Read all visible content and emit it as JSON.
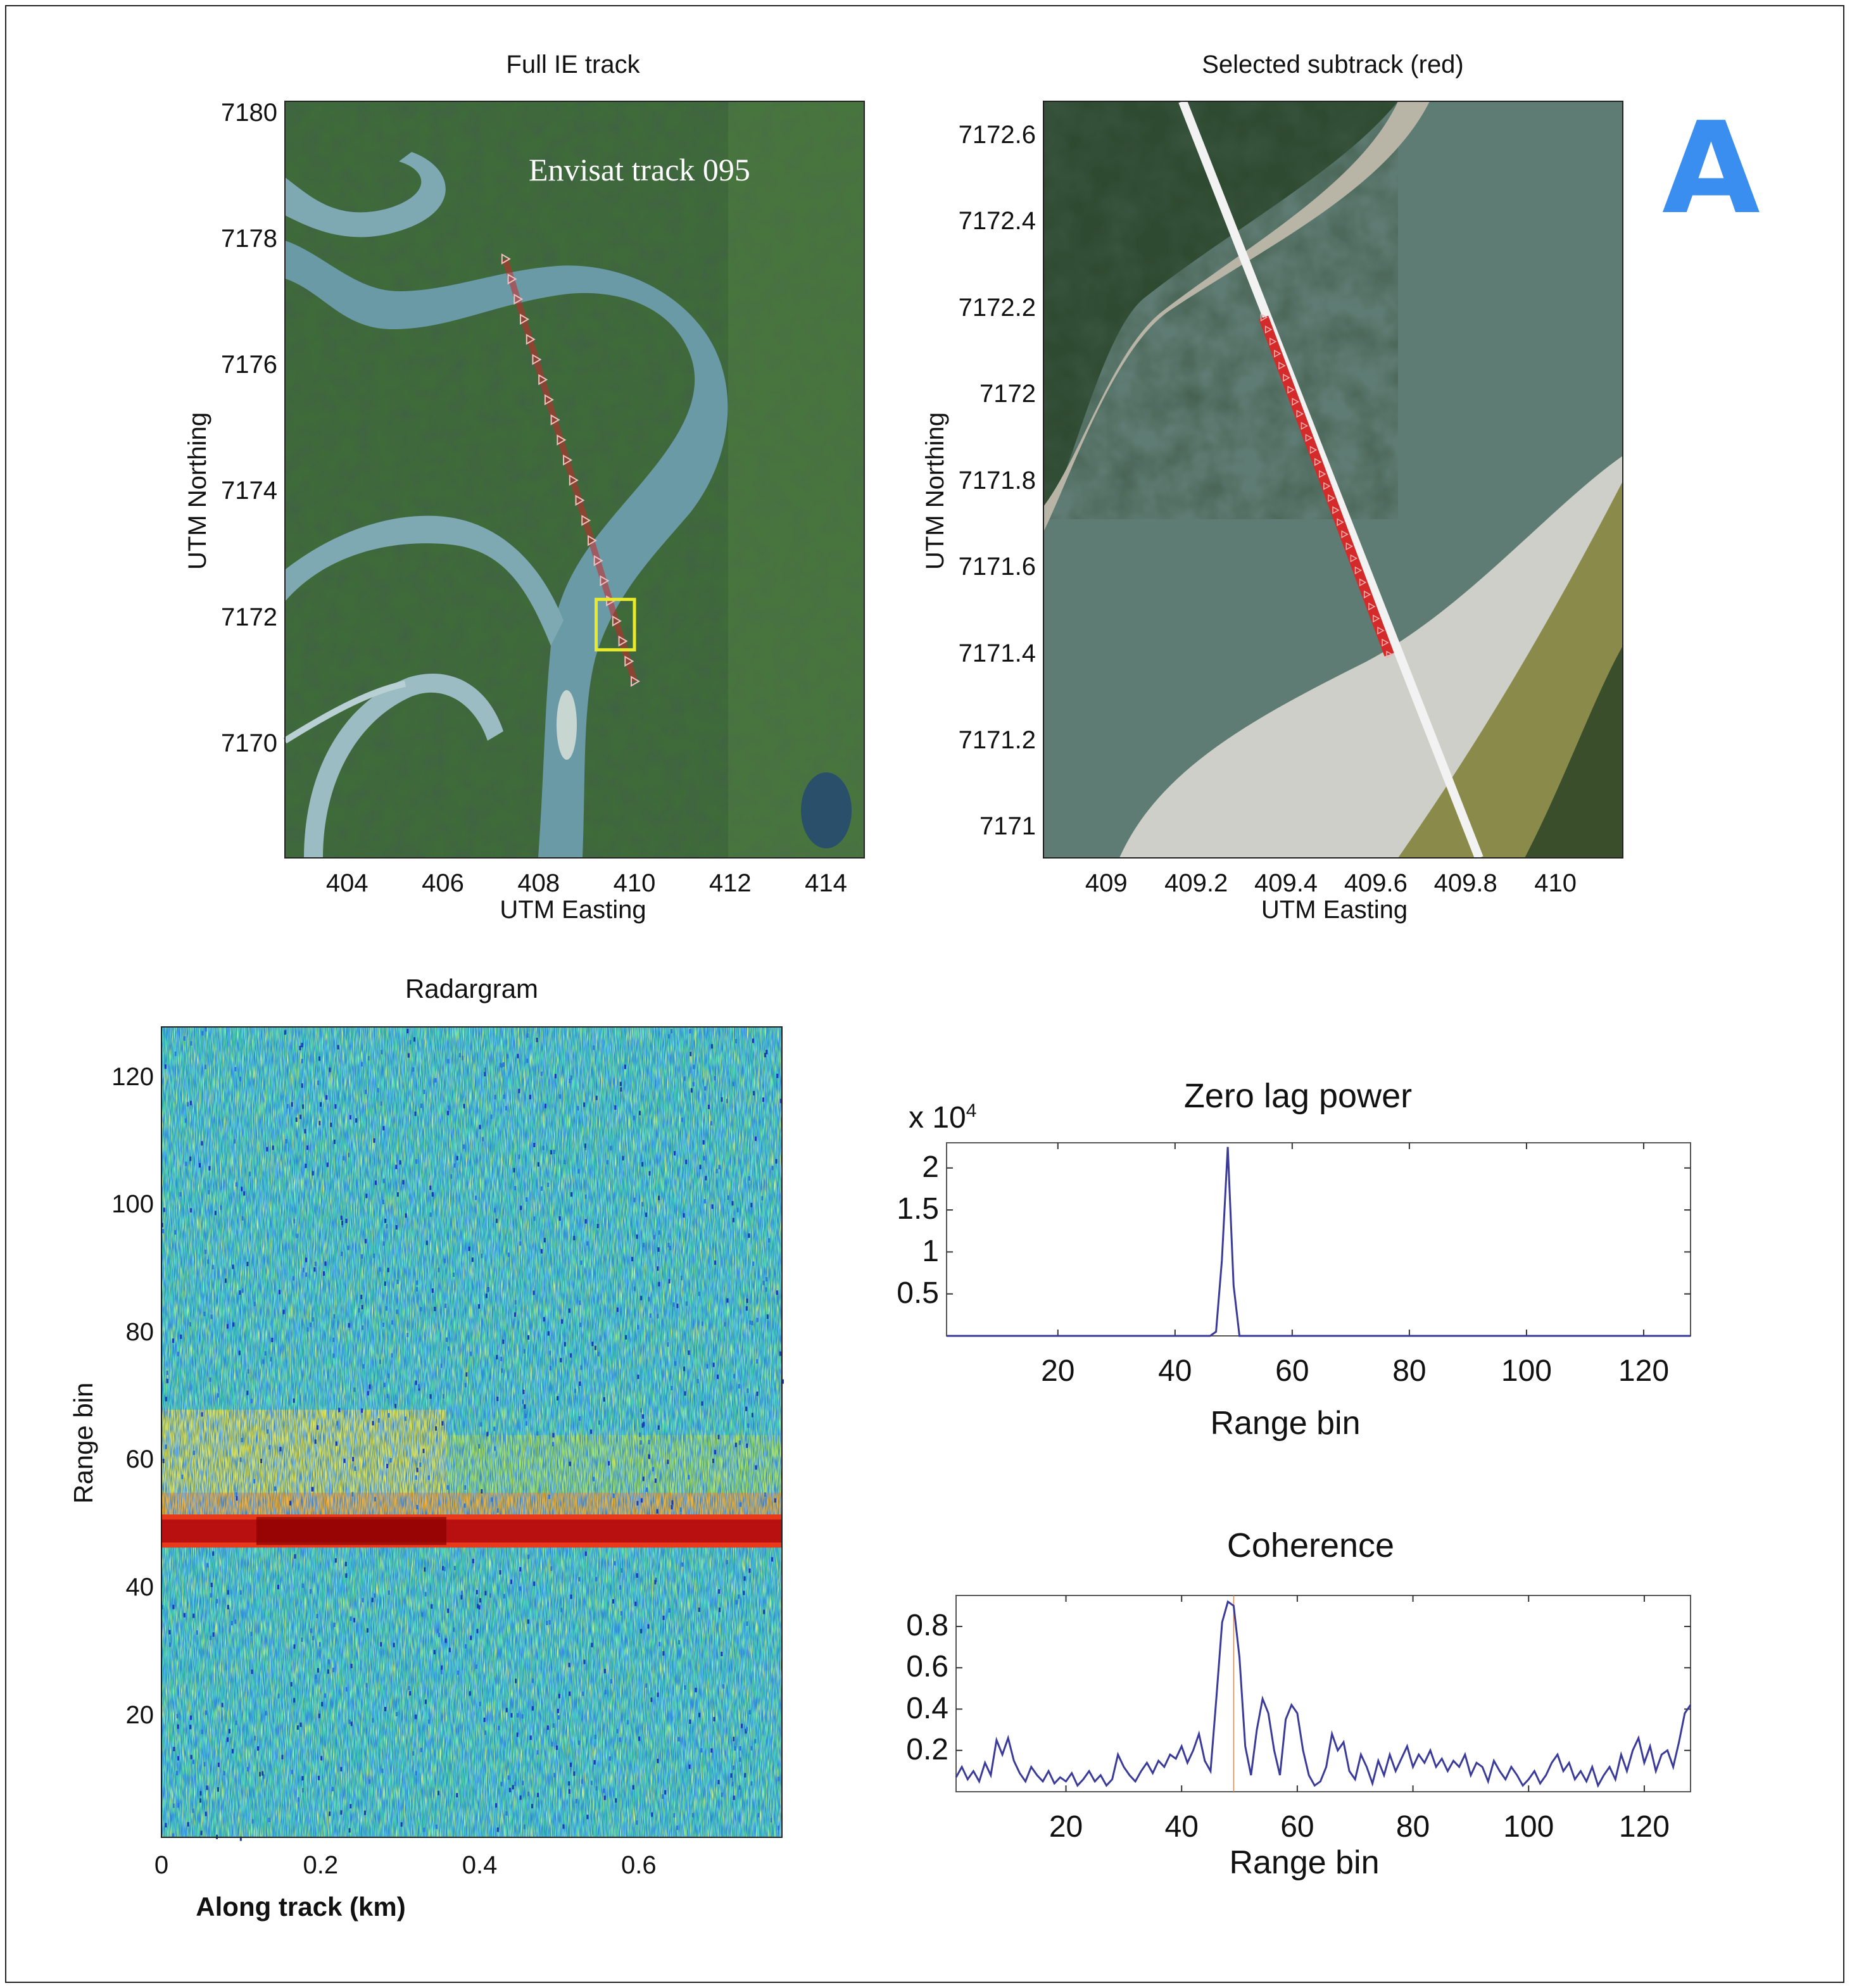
{
  "panel_letter": "A",
  "colors": {
    "track_red": "#c8282a",
    "selected_box": "#e8ea2a",
    "subtrack_white": "#f2f2f2",
    "river_water": "#6a9aa6",
    "plot_line": "#3a3a9a",
    "panel_letter": "#3a8ef0"
  },
  "chart_data": [
    {
      "id": "full-track",
      "type": "map",
      "title": "Full IE track",
      "xlabel": "UTM Easting",
      "ylabel": "UTM Northing",
      "xlim": [
        402.7,
        414.8
      ],
      "ylim": [
        7168.2,
        7180.2
      ],
      "xticks": [
        "404",
        "406",
        "408",
        "410",
        "412",
        "414"
      ],
      "yticks": [
        "7170",
        "7172",
        "7174",
        "7176",
        "7178",
        "7180"
      ],
      "annotation": "Envisat track 095",
      "track": {
        "start": [
          407.3,
          7177.7
        ],
        "end": [
          410.0,
          7171.0
        ],
        "points": 22
      },
      "selection_box": {
        "x": [
          409.2,
          410.0
        ],
        "y": [
          7171.5,
          7172.3
        ]
      }
    },
    {
      "id": "subtrack",
      "type": "map",
      "title": "Selected subtrack (red)",
      "xlabel": "UTM Easting",
      "ylabel": "UTM Northing",
      "xlim": [
        408.86,
        410.15
      ],
      "ylim": [
        7170.93,
        7172.68
      ],
      "xticks": [
        "409",
        "409.2",
        "409.4",
        "409.6",
        "409.8",
        "410"
      ],
      "yticks": [
        "7171",
        "7171.2",
        "7171.4",
        "7171.6",
        "7171.8",
        "7172",
        "7172.2",
        "7172.4",
        "7172.6"
      ],
      "track": {
        "start": [
          409.17,
          7172.68
        ],
        "end": [
          409.83,
          7170.93
        ]
      },
      "red_segment": {
        "start": [
          409.35,
          7172.18
        ],
        "end": [
          409.63,
          7171.4
        ]
      }
    },
    {
      "id": "radargram",
      "type": "heatmap",
      "title": "Radargram",
      "xlabel": "Along track (km)",
      "ylabel": "Range bin",
      "xlim": [
        0,
        0.78
      ],
      "ylim": [
        1,
        128
      ],
      "xticks": [
        "0",
        "0.2",
        "0.4",
        "0.6"
      ],
      "yticks": [
        "20",
        "40",
        "60",
        "80",
        "100",
        "120"
      ],
      "colormap": "jet",
      "peak_range_bin": 49,
      "peak_band_halfwidth": 2,
      "warm_band": [
        52,
        68
      ]
    },
    {
      "id": "zero-lag-power",
      "type": "line",
      "title": "Zero lag power",
      "exponent_label": "x 10",
      "exponent_sup": "4",
      "xlabel": "Range bin",
      "ylabel": "",
      "xlim": [
        1,
        128
      ],
      "ylim": [
        0,
        2.3
      ],
      "xticks": [
        "20",
        "40",
        "60",
        "80",
        "100",
        "120"
      ],
      "yticks": [
        "0.5",
        "1",
        "1.5",
        "2"
      ],
      "series": [
        {
          "x": [
            1,
            46,
            47,
            48,
            49,
            50,
            51,
            128
          ],
          "values": [
            0,
            0,
            0.05,
            0.9,
            2.25,
            0.6,
            0,
            0
          ]
        }
      ]
    },
    {
      "id": "coherence",
      "type": "line",
      "title": "Coherence",
      "xlabel": "Range bin",
      "ylabel": "",
      "xlim": [
        1,
        128
      ],
      "ylim": [
        0,
        0.95
      ],
      "xticks": [
        "20",
        "40",
        "60",
        "80",
        "100",
        "120"
      ],
      "yticks": [
        "0.2",
        "0.4",
        "0.6",
        "0.8"
      ],
      "series": [
        {
          "x": [
            1,
            2,
            3,
            4,
            5,
            6,
            7,
            8,
            9,
            10,
            11,
            12,
            13,
            14,
            15,
            16,
            17,
            18,
            19,
            20,
            21,
            22,
            23,
            24,
            25,
            26,
            27,
            28,
            29,
            30,
            31,
            32,
            33,
            34,
            35,
            36,
            37,
            38,
            39,
            40,
            41,
            42,
            43,
            44,
            45,
            46,
            47,
            48,
            49,
            50,
            51,
            52,
            53,
            54,
            55,
            56,
            57,
            58,
            59,
            60,
            61,
            62,
            63,
            64,
            65,
            66,
            67,
            68,
            69,
            70,
            71,
            72,
            73,
            74,
            75,
            76,
            77,
            78,
            79,
            80,
            81,
            82,
            83,
            84,
            85,
            86,
            87,
            88,
            89,
            90,
            91,
            92,
            93,
            94,
            95,
            96,
            97,
            98,
            99,
            100,
            101,
            102,
            103,
            104,
            105,
            106,
            107,
            108,
            109,
            110,
            111,
            112,
            113,
            114,
            115,
            116,
            117,
            118,
            119,
            120,
            121,
            122,
            123,
            124,
            125,
            126,
            127,
            128
          ],
          "values": [
            0.07,
            0.12,
            0.06,
            0.1,
            0.05,
            0.14,
            0.08,
            0.25,
            0.18,
            0.26,
            0.15,
            0.09,
            0.05,
            0.12,
            0.08,
            0.05,
            0.1,
            0.04,
            0.07,
            0.05,
            0.09,
            0.03,
            0.06,
            0.1,
            0.05,
            0.08,
            0.03,
            0.06,
            0.18,
            0.12,
            0.08,
            0.05,
            0.1,
            0.14,
            0.09,
            0.15,
            0.12,
            0.18,
            0.16,
            0.22,
            0.14,
            0.2,
            0.28,
            0.15,
            0.1,
            0.45,
            0.82,
            0.92,
            0.9,
            0.65,
            0.22,
            0.08,
            0.3,
            0.45,
            0.38,
            0.2,
            0.08,
            0.35,
            0.42,
            0.38,
            0.2,
            0.08,
            0.03,
            0.05,
            0.12,
            0.28,
            0.2,
            0.24,
            0.1,
            0.06,
            0.18,
            0.12,
            0.04,
            0.15,
            0.08,
            0.18,
            0.1,
            0.16,
            0.22,
            0.12,
            0.18,
            0.14,
            0.2,
            0.12,
            0.16,
            0.1,
            0.15,
            0.12,
            0.18,
            0.08,
            0.14,
            0.12,
            0.05,
            0.15,
            0.1,
            0.06,
            0.12,
            0.08,
            0.03,
            0.06,
            0.1,
            0.04,
            0.08,
            0.14,
            0.18,
            0.1,
            0.14,
            0.06,
            0.1,
            0.05,
            0.12,
            0.03,
            0.08,
            0.12,
            0.06,
            0.18,
            0.1,
            0.2,
            0.26,
            0.14,
            0.22,
            0.1,
            0.18,
            0.2,
            0.12,
            0.24,
            0.38,
            0.42
          ]
        }
      ]
    }
  ]
}
